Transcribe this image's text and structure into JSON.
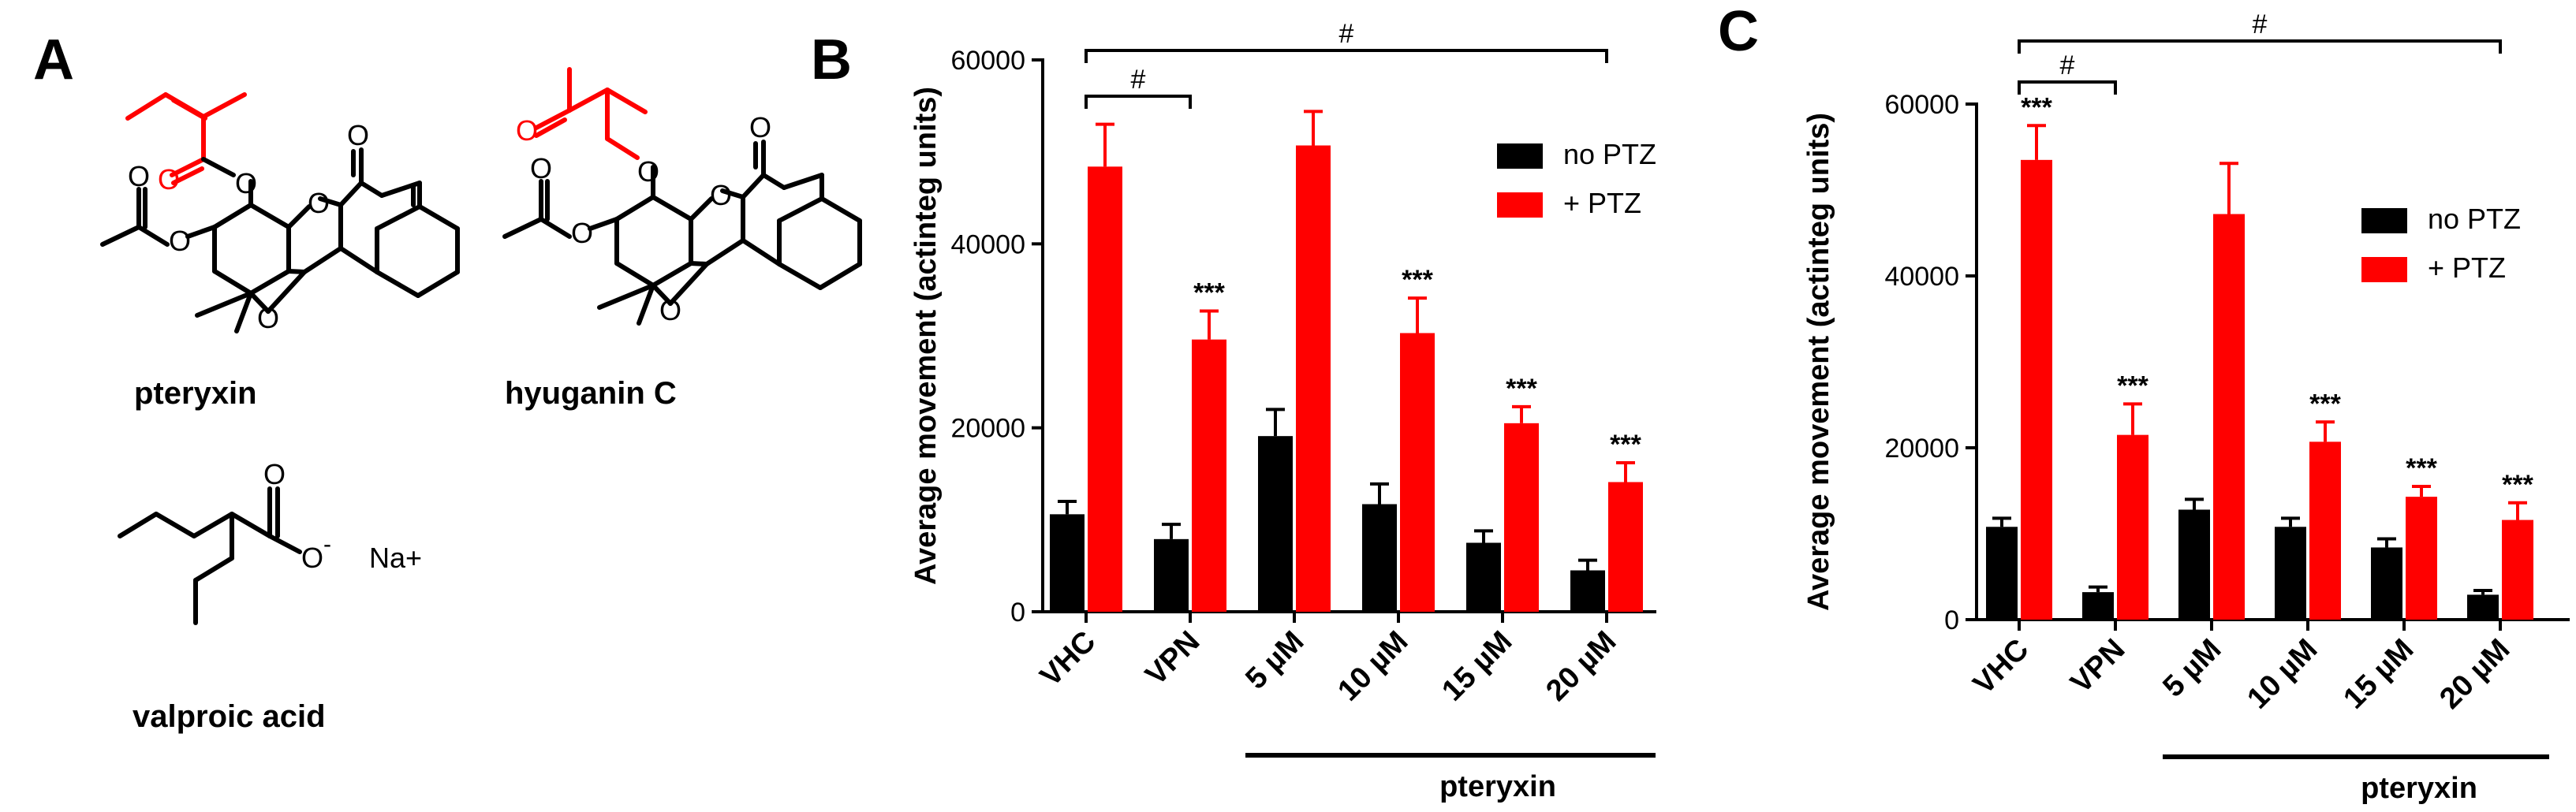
{
  "panel_labels": {
    "a": "A",
    "b": "B",
    "c": "C"
  },
  "structures": {
    "pteryxin": "pteryxin",
    "hyuganin": "hyuganin C",
    "valproic": "valproic acid",
    "atoms": {
      "O": "O",
      "O_minus": "O",
      "charge": "-",
      "sodium": "Na+"
    },
    "colors": {
      "highlight": "#ff0000",
      "bond": "#000000"
    }
  },
  "chart_data": [
    {
      "id": "B",
      "type": "bar",
      "title": "",
      "xlabel": "",
      "ylabel": "Average movement (actinteg units)",
      "ylim": [
        0,
        60000
      ],
      "yticks": [
        "0",
        "20000",
        "40000",
        "60000"
      ],
      "categories": [
        "VHC",
        "VPN",
        "5 µM",
        "10 µM",
        "15 µM",
        "20 µM"
      ],
      "group_label": "pteryxin",
      "legend_position": "top-right",
      "series": [
        {
          "name": "no PTZ",
          "color": "#000000",
          "values": [
            10600,
            7900,
            19100,
            11700,
            7500,
            4500
          ],
          "errors": [
            1400,
            1600,
            2900,
            2200,
            1300,
            1100
          ]
        },
        {
          "name": "+ PTZ",
          "color": "#ff0000",
          "values": [
            48400,
            29600,
            50700,
            30300,
            20500,
            14100
          ],
          "errors": [
            4600,
            3100,
            3700,
            3800,
            1800,
            2100
          ]
        }
      ],
      "significance": [
        {
          "category": "VPN",
          "series": "+ PTZ",
          "label": "***"
        },
        {
          "category": "10 µM",
          "series": "+ PTZ",
          "label": "***"
        },
        {
          "category": "15 µM",
          "series": "+ PTZ",
          "label": "***"
        },
        {
          "category": "20 µM",
          "series": "+ PTZ",
          "label": "***"
        }
      ],
      "comparisons": [
        {
          "from": "VHC",
          "to": "VPN",
          "label": "#"
        },
        {
          "from": "VHC",
          "to": "20 µM",
          "label": "#"
        }
      ]
    },
    {
      "id": "C",
      "type": "bar",
      "title": "",
      "xlabel": "",
      "ylabel": "Average movement (actinteg units)",
      "ylim": [
        0,
        60000
      ],
      "yticks": [
        "0",
        "20000",
        "40000",
        "60000"
      ],
      "categories": [
        "VHC",
        "VPN",
        "5 µM",
        "10 µM",
        "15 µM",
        "20 µM"
      ],
      "group_label": "pteryxin",
      "legend_position": "right",
      "series": [
        {
          "name": "no PTZ",
          "color": "#000000",
          "values": [
            10800,
            3200,
            12800,
            10800,
            8400,
            2900
          ],
          "errors": [
            1000,
            600,
            1200,
            1000,
            1000,
            500
          ]
        },
        {
          "name": "+ PTZ",
          "color": "#ff0000",
          "values": [
            53500,
            21500,
            47200,
            20700,
            14300,
            11600
          ],
          "errors": [
            4000,
            3600,
            5900,
            2300,
            1200,
            2000
          ]
        }
      ],
      "significance": [
        {
          "category": "VHC",
          "series": "+ PTZ",
          "label": "***"
        },
        {
          "category": "VPN",
          "series": "+ PTZ",
          "label": "***"
        },
        {
          "category": "10 µM",
          "series": "+ PTZ",
          "label": "***"
        },
        {
          "category": "15 µM",
          "series": "+ PTZ",
          "label": "***"
        },
        {
          "category": "20 µM",
          "series": "+ PTZ",
          "label": "***"
        }
      ],
      "comparisons": [
        {
          "from": "VHC",
          "to": "VPN",
          "label": "#"
        },
        {
          "from": "VHC",
          "to": "20 µM",
          "label": "#"
        }
      ]
    }
  ]
}
